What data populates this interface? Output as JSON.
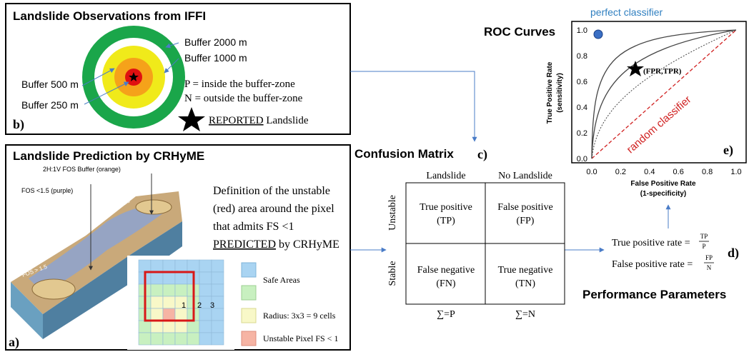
{
  "panel_b": {
    "title": "Landslide Observations from IFFI",
    "label": "b)",
    "buffers": [
      "Buffer 2000 m",
      "Buffer 1000 m",
      "Buffer 500 m",
      "Buffer 250 m"
    ],
    "p_def": "P = inside the buffer-zone",
    "n_def": "N = outside the buffer-zone",
    "reported": "REPORTED",
    "landslide": "Landslide"
  },
  "panel_a": {
    "title": "Landslide Prediction by CRHyME",
    "label": "a)",
    "slope_labels": [
      "2H:1V FOS Buffer (orange)",
      "FOS <1.5 (purple)",
      "FOS > 1.5",
      "FOS < 1.5",
      "FOS > 1.5"
    ],
    "definition": [
      "Definition of the unstable",
      "(red) area around the pixel",
      "that admits FS <1"
    ],
    "predicted": "PREDICTED",
    "by": "by CRHyME",
    "cell_numbers": [
      "1",
      "2",
      "3"
    ],
    "legend": [
      "Safe Areas",
      "Radius: 3x3 = 9 cells",
      "Unstable Pixel FS < 1"
    ]
  },
  "confusion": {
    "title": "Confusion Matrix",
    "label": "c)",
    "columns": [
      "Landslide",
      "No Landslide"
    ],
    "rows": [
      "Unstable",
      "Stable"
    ],
    "cells": [
      [
        "True positive",
        "(TP)",
        "False positive",
        "(FP)"
      ],
      [
        "False negative",
        "(FN)",
        "True negative",
        "(TN)"
      ]
    ],
    "sums": [
      "∑=P",
      "∑=N"
    ]
  },
  "performance": {
    "title": "Performance Parameters",
    "label": "d)",
    "tpr": "True positive rate =",
    "tpr_num": "TP",
    "tpr_den": "P",
    "fpr": "False positive rate =",
    "fpr_num": "FP",
    "fpr_den": "N"
  },
  "roc": {
    "title": "ROC Curves",
    "label": "e)",
    "perfect": "perfect classifier",
    "random": "random classifier",
    "point": "(FPR,TPR)",
    "xlabel": [
      "False Positive Rate",
      "(1-specificity)"
    ],
    "ylabel": [
      "True Positive Rate",
      "(sensitivity)"
    ],
    "xticks": [
      "0.0",
      "0.2",
      "0.4",
      "0.6",
      "0.8",
      "1.0"
    ],
    "yticks": [
      "0.0",
      "0.2",
      "0.4",
      "0.6",
      "0.8",
      "1.0"
    ]
  }
}
